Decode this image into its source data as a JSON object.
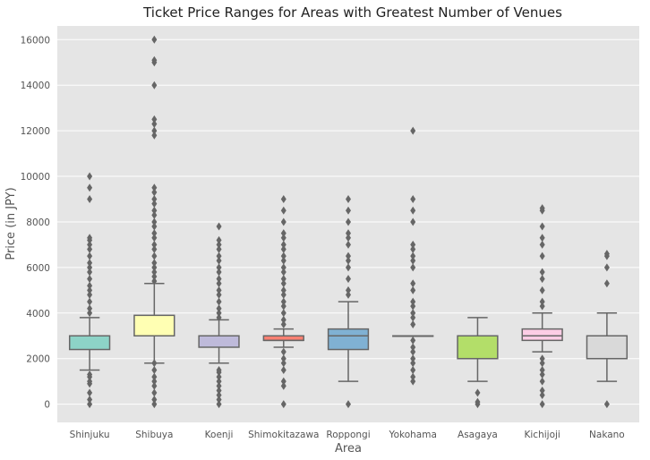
{
  "chart_data": {
    "type": "box",
    "title": "Ticket Price Ranges for Areas with Greatest Number of Venues",
    "xlabel": "Area",
    "ylabel": "Price (in JPY)",
    "ylim": [
      -800,
      16600
    ],
    "yticks": [
      0,
      2000,
      4000,
      6000,
      8000,
      10000,
      12000,
      14000,
      16000
    ],
    "grid": true,
    "colors": {
      "plot_background": "#e5e5e5",
      "grid": "#ffffff",
      "whisker": "#666666"
    },
    "boxes": [
      {
        "category": "Shinjuku",
        "color": "#8dd3c7",
        "min": 1500,
        "q1": 2400,
        "median": 3000,
        "q3": 3000,
        "max": 3800,
        "outliers": [
          0,
          200,
          500,
          900,
          1000,
          1200,
          1300,
          4000,
          4200,
          4500,
          4800,
          5000,
          5200,
          5500,
          5800,
          6000,
          6200,
          6500,
          6800,
          7000,
          7200,
          7300,
          9000,
          9500,
          10000
        ]
      },
      {
        "category": "Shibuya",
        "color": "#ffffb3",
        "min": 1800,
        "q1": 3000,
        "median": 3000,
        "q3": 3900,
        "max": 5300,
        "outliers": [
          0,
          200,
          500,
          800,
          1000,
          1200,
          1500,
          1800,
          5400,
          5600,
          5800,
          6000,
          6200,
          6500,
          6800,
          7000,
          7300,
          7500,
          7800,
          8000,
          8300,
          8500,
          8800,
          9000,
          9300,
          9500,
          11800,
          12000,
          12300,
          12500,
          14000,
          15000,
          15100,
          16000
        ]
      },
      {
        "category": "Koenji",
        "color": "#bebada",
        "min": 1800,
        "q1": 2500,
        "median": 3000,
        "q3": 3000,
        "max": 3700,
        "outliers": [
          0,
          200,
          400,
          600,
          800,
          1000,
          1200,
          1400,
          1500,
          3800,
          4000,
          4200,
          4500,
          4800,
          5000,
          5300,
          5500,
          5800,
          6000,
          6300,
          6500,
          6800,
          7000,
          7200,
          7800
        ]
      },
      {
        "category": "Shimokitazawa",
        "color": "#fb8072",
        "min": 2500,
        "q1": 2800,
        "median": 2800,
        "q3": 3000,
        "max": 3300,
        "outliers": [
          0,
          800,
          1000,
          1500,
          1800,
          2000,
          2300,
          3500,
          3700,
          4000,
          4300,
          4500,
          4800,
          5000,
          5300,
          5500,
          5800,
          6000,
          6300,
          6500,
          6800,
          7000,
          7300,
          7500,
          8000,
          8500,
          9000
        ]
      },
      {
        "category": "Roppongi",
        "color": "#80b1d3",
        "min": 1000,
        "q1": 2400,
        "median": 3000,
        "q3": 3300,
        "max": 4500,
        "outliers": [
          0,
          4800,
          5000,
          5500,
          6000,
          6300,
          6500,
          7000,
          7300,
          7500,
          8000,
          8500,
          9000
        ]
      },
      {
        "category": "Yokohama",
        "color": "#fdb462",
        "min": 3000,
        "q1": 3000,
        "median": 3000,
        "q3": 3000,
        "max": 3000,
        "outliers": [
          1000,
          1200,
          1500,
          1800,
          2000,
          2300,
          2500,
          2800,
          3500,
          3800,
          4000,
          4300,
          4500,
          5000,
          5300,
          6000,
          6300,
          6500,
          6800,
          7000,
          8000,
          8500,
          9000,
          12000
        ]
      },
      {
        "category": "Asagaya",
        "color": "#b3de69",
        "min": 1000,
        "q1": 2000,
        "median": 3000,
        "q3": 3000,
        "max": 3800,
        "outliers": [
          0,
          100,
          500
        ]
      },
      {
        "category": "Kichijoji",
        "color": "#fccde5",
        "min": 2300,
        "q1": 2800,
        "median": 3000,
        "q3": 3300,
        "max": 4000,
        "outliers": [
          0,
          400,
          600,
          1000,
          1300,
          1500,
          1800,
          2000,
          4300,
          4500,
          5000,
          5500,
          5800,
          6500,
          7000,
          7300,
          7800,
          8500,
          8600
        ]
      },
      {
        "category": "Nakano",
        "color": "#d9d9d9",
        "min": 1000,
        "q1": 2000,
        "median": 3000,
        "q3": 3000,
        "max": 4000,
        "outliers": [
          0,
          5300,
          6000,
          6500,
          6600
        ]
      }
    ]
  }
}
